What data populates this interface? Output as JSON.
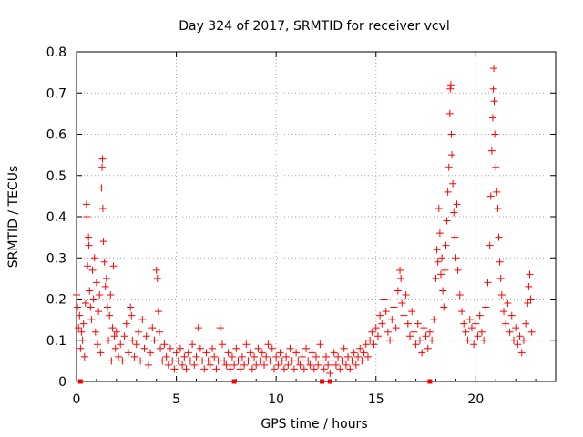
{
  "chart_data": {
    "type": "scatter",
    "title": "Day 324 of 2017, SRMTID for receiver vcvl",
    "xlabel": "GPS time / hours",
    "ylabel": "SRMTID / TECUs",
    "xlim": [
      0,
      24
    ],
    "ylim": [
      0,
      0.8
    ],
    "x_ticks": [
      0,
      5,
      10,
      15,
      20
    ],
    "x_tick_labels": [
      "0",
      "5",
      "10",
      "15",
      "20"
    ],
    "y_ticks": [
      0,
      0.1,
      0.2,
      0.3,
      0.4,
      0.5,
      0.6,
      0.7,
      0.8
    ],
    "y_tick_labels": [
      "0",
      "0.1",
      "0.2",
      "0.3",
      "0.4",
      "0.5",
      "0.6",
      "0.7",
      "0.8"
    ],
    "grid": true,
    "marker": "plus",
    "color": "#ff0000",
    "series": [
      {
        "name": "SRMTID",
        "points": [
          [
            0.0,
            0.21
          ],
          [
            0.05,
            0.18
          ],
          [
            0.1,
            0.13
          ],
          [
            0.15,
            0.16
          ],
          [
            0.2,
            0.08
          ],
          [
            0.25,
            0.12
          ],
          [
            0.3,
            0.1
          ],
          [
            0.35,
            0.14
          ],
          [
            0.4,
            0.06
          ],
          [
            0.45,
            0.19
          ],
          [
            0.5,
            0.43
          ],
          [
            0.52,
            0.4
          ],
          [
            0.55,
            0.28
          ],
          [
            0.6,
            0.35
          ],
          [
            0.62,
            0.33
          ],
          [
            0.65,
            0.22
          ],
          [
            0.7,
            0.18
          ],
          [
            0.75,
            0.15
          ],
          [
            0.8,
            0.27
          ],
          [
            0.85,
            0.2
          ],
          [
            0.9,
            0.3
          ],
          [
            0.95,
            0.12
          ],
          [
            1.0,
            0.24
          ],
          [
            1.05,
            0.09
          ],
          [
            1.1,
            0.17
          ],
          [
            1.15,
            0.21
          ],
          [
            1.2,
            0.07
          ],
          [
            1.25,
            0.47
          ],
          [
            1.28,
            0.52
          ],
          [
            1.3,
            0.54
          ],
          [
            1.32,
            0.42
          ],
          [
            1.35,
            0.34
          ],
          [
            1.4,
            0.29
          ],
          [
            1.45,
            0.23
          ],
          [
            1.5,
            0.25
          ],
          [
            1.55,
            0.18
          ],
          [
            1.6,
            0.1
          ],
          [
            1.65,
            0.16
          ],
          [
            1.7,
            0.21
          ],
          [
            1.75,
            0.05
          ],
          [
            1.8,
            0.13
          ],
          [
            1.85,
            0.28
          ],
          [
            1.9,
            0.11
          ],
          [
            1.95,
            0.08
          ],
          [
            2.0,
            0.12
          ],
          [
            2.1,
            0.06
          ],
          [
            2.2,
            0.09
          ],
          [
            2.3,
            0.05
          ],
          [
            2.4,
            0.11
          ],
          [
            2.5,
            0.14
          ],
          [
            2.6,
            0.07
          ],
          [
            2.7,
            0.18
          ],
          [
            2.75,
            0.16
          ],
          [
            2.8,
            0.1
          ],
          [
            2.9,
            0.06
          ],
          [
            3.0,
            0.09
          ],
          [
            3.1,
            0.12
          ],
          [
            3.2,
            0.05
          ],
          [
            3.3,
            0.15
          ],
          [
            3.4,
            0.08
          ],
          [
            3.5,
            0.11
          ],
          [
            3.6,
            0.04
          ],
          [
            3.7,
            0.07
          ],
          [
            3.8,
            0.13
          ],
          [
            3.9,
            0.1
          ],
          [
            4.0,
            0.27
          ],
          [
            4.05,
            0.25
          ],
          [
            4.1,
            0.17
          ],
          [
            4.15,
            0.12
          ],
          [
            4.2,
            0.08
          ],
          [
            4.3,
            0.05
          ],
          [
            4.4,
            0.09
          ],
          [
            4.5,
            0.06
          ],
          [
            4.6,
            0.04
          ],
          [
            4.7,
            0.08
          ],
          [
            4.8,
            0.05
          ],
          [
            4.9,
            0.03
          ],
          [
            5.0,
            0.07
          ],
          [
            5.1,
            0.05
          ],
          [
            5.2,
            0.08
          ],
          [
            5.3,
            0.04
          ],
          [
            5.4,
            0.06
          ],
          [
            5.5,
            0.03
          ],
          [
            5.6,
            0.07
          ],
          [
            5.7,
            0.05
          ],
          [
            5.8,
            0.09
          ],
          [
            5.9,
            0.04
          ],
          [
            6.0,
            0.06
          ],
          [
            6.1,
            0.13
          ],
          [
            6.2,
            0.08
          ],
          [
            6.3,
            0.05
          ],
          [
            6.4,
            0.03
          ],
          [
            6.5,
            0.07
          ],
          [
            6.6,
            0.05
          ],
          [
            6.7,
            0.04
          ],
          [
            6.8,
            0.08
          ],
          [
            6.9,
            0.06
          ],
          [
            7.0,
            0.03
          ],
          [
            7.1,
            0.05
          ],
          [
            7.2,
            0.13
          ],
          [
            7.3,
            0.09
          ],
          [
            7.4,
            0.05
          ],
          [
            7.5,
            0.04
          ],
          [
            7.6,
            0.07
          ],
          [
            7.7,
            0.03
          ],
          [
            7.8,
            0.06
          ],
          [
            7.9,
            0.04
          ],
          [
            8.0,
            0.08
          ],
          [
            8.1,
            0.05
          ],
          [
            8.2,
            0.03
          ],
          [
            8.3,
            0.06
          ],
          [
            8.4,
            0.04
          ],
          [
            8.5,
            0.09
          ],
          [
            8.6,
            0.05
          ],
          [
            8.7,
            0.07
          ],
          [
            8.8,
            0.03
          ],
          [
            8.9,
            0.06
          ],
          [
            9.0,
            0.04
          ],
          [
            9.1,
            0.08
          ],
          [
            9.2,
            0.05
          ],
          [
            9.3,
            0.07
          ],
          [
            9.4,
            0.04
          ],
          [
            9.5,
            0.06
          ],
          [
            9.6,
            0.09
          ],
          [
            9.7,
            0.05
          ],
          [
            9.8,
            0.08
          ],
          [
            9.9,
            0.03
          ],
          [
            10.0,
            0.06
          ],
          [
            10.1,
            0.04
          ],
          [
            10.2,
            0.07
          ],
          [
            10.3,
            0.05
          ],
          [
            10.4,
            0.03
          ],
          [
            10.5,
            0.06
          ],
          [
            10.6,
            0.04
          ],
          [
            10.7,
            0.08
          ],
          [
            10.8,
            0.05
          ],
          [
            10.9,
            0.03
          ],
          [
            11.0,
            0.07
          ],
          [
            11.1,
            0.05
          ],
          [
            11.2,
            0.04
          ],
          [
            11.3,
            0.06
          ],
          [
            11.4,
            0.03
          ],
          [
            11.5,
            0.08
          ],
          [
            11.6,
            0.05
          ],
          [
            11.7,
            0.04
          ],
          [
            11.8,
            0.07
          ],
          [
            11.9,
            0.03
          ],
          [
            12.0,
            0.06
          ],
          [
            12.1,
            0.04
          ],
          [
            12.2,
            0.09
          ],
          [
            12.3,
            0.05
          ],
          [
            12.4,
            0.03
          ],
          [
            12.5,
            0.06
          ],
          [
            12.6,
            0.04
          ],
          [
            12.7,
            0.02
          ],
          [
            12.8,
            0.05
          ],
          [
            12.9,
            0.07
          ],
          [
            13.0,
            0.04
          ],
          [
            13.1,
            0.06
          ],
          [
            13.2,
            0.03
          ],
          [
            13.3,
            0.05
          ],
          [
            13.4,
            0.08
          ],
          [
            13.5,
            0.04
          ],
          [
            13.6,
            0.06
          ],
          [
            13.7,
            0.03
          ],
          [
            13.8,
            0.05
          ],
          [
            13.9,
            0.07
          ],
          [
            14.0,
            0.04
          ],
          [
            14.1,
            0.06
          ],
          [
            14.2,
            0.08
          ],
          [
            14.3,
            0.05
          ],
          [
            14.4,
            0.07
          ],
          [
            14.5,
            0.09
          ],
          [
            14.6,
            0.06
          ],
          [
            14.7,
            0.1
          ],
          [
            14.8,
            0.12
          ],
          [
            14.9,
            0.09
          ],
          [
            15.0,
            0.13
          ],
          [
            15.1,
            0.11
          ],
          [
            15.2,
            0.16
          ],
          [
            15.3,
            0.14
          ],
          [
            15.4,
            0.2
          ],
          [
            15.5,
            0.17
          ],
          [
            15.6,
            0.12
          ],
          [
            15.7,
            0.1
          ],
          [
            15.8,
            0.15
          ],
          [
            15.9,
            0.18
          ],
          [
            16.0,
            0.13
          ],
          [
            16.1,
            0.22
          ],
          [
            16.2,
            0.27
          ],
          [
            16.25,
            0.25
          ],
          [
            16.3,
            0.19
          ],
          [
            16.4,
            0.16
          ],
          [
            16.5,
            0.21
          ],
          [
            16.6,
            0.14
          ],
          [
            16.7,
            0.11
          ],
          [
            16.8,
            0.17
          ],
          [
            16.9,
            0.12
          ],
          [
            17.0,
            0.09
          ],
          [
            17.1,
            0.14
          ],
          [
            17.2,
            0.1
          ],
          [
            17.3,
            0.07
          ],
          [
            17.4,
            0.13
          ],
          [
            17.5,
            0.11
          ],
          [
            17.6,
            0.08
          ],
          [
            17.7,
            0.12
          ],
          [
            17.8,
            0.1
          ],
          [
            17.9,
            0.15
          ],
          [
            18.0,
            0.25
          ],
          [
            18.05,
            0.32
          ],
          [
            18.1,
            0.29
          ],
          [
            18.15,
            0.42
          ],
          [
            18.2,
            0.36
          ],
          [
            18.25,
            0.26
          ],
          [
            18.3,
            0.3
          ],
          [
            18.35,
            0.22
          ],
          [
            18.4,
            0.18
          ],
          [
            18.45,
            0.27
          ],
          [
            18.5,
            0.33
          ],
          [
            18.55,
            0.39
          ],
          [
            18.6,
            0.46
          ],
          [
            18.65,
            0.52
          ],
          [
            18.7,
            0.65
          ],
          [
            18.72,
            0.71
          ],
          [
            18.75,
            0.72
          ],
          [
            18.78,
            0.6
          ],
          [
            18.8,
            0.55
          ],
          [
            18.85,
            0.48
          ],
          [
            18.9,
            0.41
          ],
          [
            18.95,
            0.35
          ],
          [
            19.0,
            0.3
          ],
          [
            19.05,
            0.43
          ],
          [
            19.1,
            0.27
          ],
          [
            19.2,
            0.21
          ],
          [
            19.3,
            0.17
          ],
          [
            19.4,
            0.14
          ],
          [
            19.5,
            0.12
          ],
          [
            19.6,
            0.1
          ],
          [
            19.7,
            0.15
          ],
          [
            19.8,
            0.13
          ],
          [
            19.9,
            0.09
          ],
          [
            20.0,
            0.14
          ],
          [
            20.1,
            0.11
          ],
          [
            20.2,
            0.16
          ],
          [
            20.3,
            0.12
          ],
          [
            20.4,
            0.1
          ],
          [
            20.5,
            0.18
          ],
          [
            20.6,
            0.24
          ],
          [
            20.7,
            0.33
          ],
          [
            20.75,
            0.45
          ],
          [
            20.8,
            0.56
          ],
          [
            20.85,
            0.64
          ],
          [
            20.88,
            0.71
          ],
          [
            20.9,
            0.76
          ],
          [
            20.92,
            0.68
          ],
          [
            20.95,
            0.6
          ],
          [
            21.0,
            0.52
          ],
          [
            21.05,
            0.46
          ],
          [
            21.1,
            0.42
          ],
          [
            21.15,
            0.35
          ],
          [
            21.2,
            0.29
          ],
          [
            21.25,
            0.25
          ],
          [
            21.3,
            0.21
          ],
          [
            21.4,
            0.17
          ],
          [
            21.5,
            0.14
          ],
          [
            21.6,
            0.19
          ],
          [
            21.7,
            0.12
          ],
          [
            21.8,
            0.16
          ],
          [
            21.9,
            0.1
          ],
          [
            22.0,
            0.13
          ],
          [
            22.1,
            0.09
          ],
          [
            22.2,
            0.11
          ],
          [
            22.3,
            0.07
          ],
          [
            22.4,
            0.1
          ],
          [
            22.5,
            0.14
          ],
          [
            22.6,
            0.19
          ],
          [
            22.65,
            0.23
          ],
          [
            22.7,
            0.26
          ],
          [
            22.75,
            0.2
          ],
          [
            22.8,
            0.12
          ]
        ]
      }
    ],
    "baseline_markers_x": [
      0.2,
      7.9,
      12.3,
      12.7,
      17.7
    ]
  }
}
